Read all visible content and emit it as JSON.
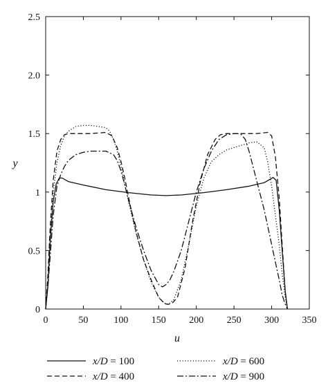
{
  "chart_data": {
    "type": "line",
    "title": "",
    "xlabel": "u",
    "ylabel": "y",
    "xlim": [
      0,
      350
    ],
    "ylim": [
      0,
      2.5
    ],
    "xticks": [
      0,
      50,
      100,
      150,
      200,
      250,
      300,
      350
    ],
    "yticks": [
      0,
      0.5,
      1,
      1.5,
      2.0,
      2.5
    ],
    "xtick_labels": [
      "0",
      "50",
      "100",
      "150",
      "200",
      "250",
      "300",
      "350"
    ],
    "ytick_labels": [
      "0",
      "0.5",
      "1",
      "1.5",
      "2.0",
      "2.5"
    ],
    "grid": false,
    "legend_position": "bottom",
    "series": [
      {
        "name": "x/D = 100",
        "name_var": "x/D",
        "name_value": "100",
        "style": "solid",
        "x": [
          0,
          3,
          6,
          10,
          14,
          18,
          22,
          30,
          50,
          80,
          110,
          140,
          160,
          180,
          210,
          240,
          270,
          290,
          298,
          302,
          306,
          310,
          314,
          318,
          321
        ],
        "y": [
          0,
          0.2,
          0.58,
          0.92,
          1.07,
          1.12,
          1.12,
          1.09,
          1.06,
          1.02,
          0.995,
          0.975,
          0.97,
          0.975,
          0.995,
          1.02,
          1.05,
          1.08,
          1.11,
          1.125,
          1.1,
          0.85,
          0.5,
          0.15,
          0
        ]
      },
      {
        "name": "x/D = 400",
        "name_var": "x/D",
        "name_value": "400",
        "style": "dashed",
        "x": [
          0,
          3,
          6,
          10,
          15,
          20,
          25,
          30,
          40,
          60,
          80,
          88,
          95,
          100,
          105,
          110,
          115,
          120,
          130,
          140,
          150,
          158,
          163,
          168,
          175,
          185,
          195,
          205,
          215,
          225,
          232,
          240,
          260,
          280,
          295,
          300,
          305,
          310,
          314,
          318,
          321
        ],
        "y": [
          0,
          0.3,
          0.7,
          1.1,
          1.35,
          1.45,
          1.49,
          1.5,
          1.5,
          1.5,
          1.51,
          1.48,
          1.38,
          1.26,
          1.12,
          0.96,
          0.8,
          0.66,
          0.42,
          0.25,
          0.1,
          0.045,
          0.04,
          0.05,
          0.1,
          0.35,
          0.75,
          1.08,
          1.32,
          1.45,
          1.49,
          1.5,
          1.5,
          1.5,
          1.51,
          1.48,
          1.3,
          0.95,
          0.55,
          0.15,
          0
        ]
      },
      {
        "name": "x/D = 600",
        "name_var": "x/D",
        "name_value": "600",
        "style": "dotted",
        "x": [
          0,
          3,
          6,
          10,
          15,
          20,
          25,
          30,
          40,
          50,
          60,
          70,
          80,
          85,
          90,
          95,
          100,
          110,
          120,
          130,
          140,
          150,
          158,
          163,
          170,
          180,
          190,
          200,
          210,
          220,
          230,
          240,
          255,
          270,
          280,
          290,
          295,
          300,
          305,
          310,
          314,
          318,
          321
        ],
        "y": [
          0,
          0.25,
          0.6,
          1.0,
          1.25,
          1.4,
          1.48,
          1.52,
          1.56,
          1.57,
          1.57,
          1.56,
          1.55,
          1.52,
          1.45,
          1.35,
          1.22,
          0.92,
          0.65,
          0.42,
          0.23,
          0.1,
          0.05,
          0.04,
          0.08,
          0.25,
          0.55,
          0.88,
          1.12,
          1.26,
          1.32,
          1.36,
          1.39,
          1.42,
          1.43,
          1.38,
          1.25,
          1.05,
          0.8,
          0.55,
          0.3,
          0.1,
          0
        ]
      },
      {
        "name": "x/D = 900",
        "name_var": "x/D",
        "name_value": "900",
        "style": "dashdot",
        "x": [
          0,
          3,
          6,
          10,
          15,
          20,
          25,
          30,
          40,
          50,
          60,
          70,
          80,
          90,
          95,
          100,
          105,
          110,
          120,
          130,
          140,
          150,
          155,
          160,
          165,
          170,
          180,
          190,
          200,
          210,
          220,
          230,
          240,
          250,
          255,
          260,
          265,
          270,
          280,
          290,
          300,
          305,
          310,
          314,
          318,
          321
        ],
        "y": [
          0,
          0.2,
          0.45,
          0.8,
          1.05,
          1.15,
          1.22,
          1.27,
          1.32,
          1.34,
          1.35,
          1.35,
          1.35,
          1.32,
          1.27,
          1.18,
          1.06,
          0.93,
          0.7,
          0.5,
          0.33,
          0.21,
          0.19,
          0.21,
          0.25,
          0.32,
          0.5,
          0.75,
          1.0,
          1.2,
          1.35,
          1.45,
          1.49,
          1.5,
          1.5,
          1.49,
          1.45,
          1.35,
          1.1,
          0.85,
          0.55,
          0.4,
          0.25,
          0.12,
          0.04,
          0
        ]
      }
    ]
  }
}
